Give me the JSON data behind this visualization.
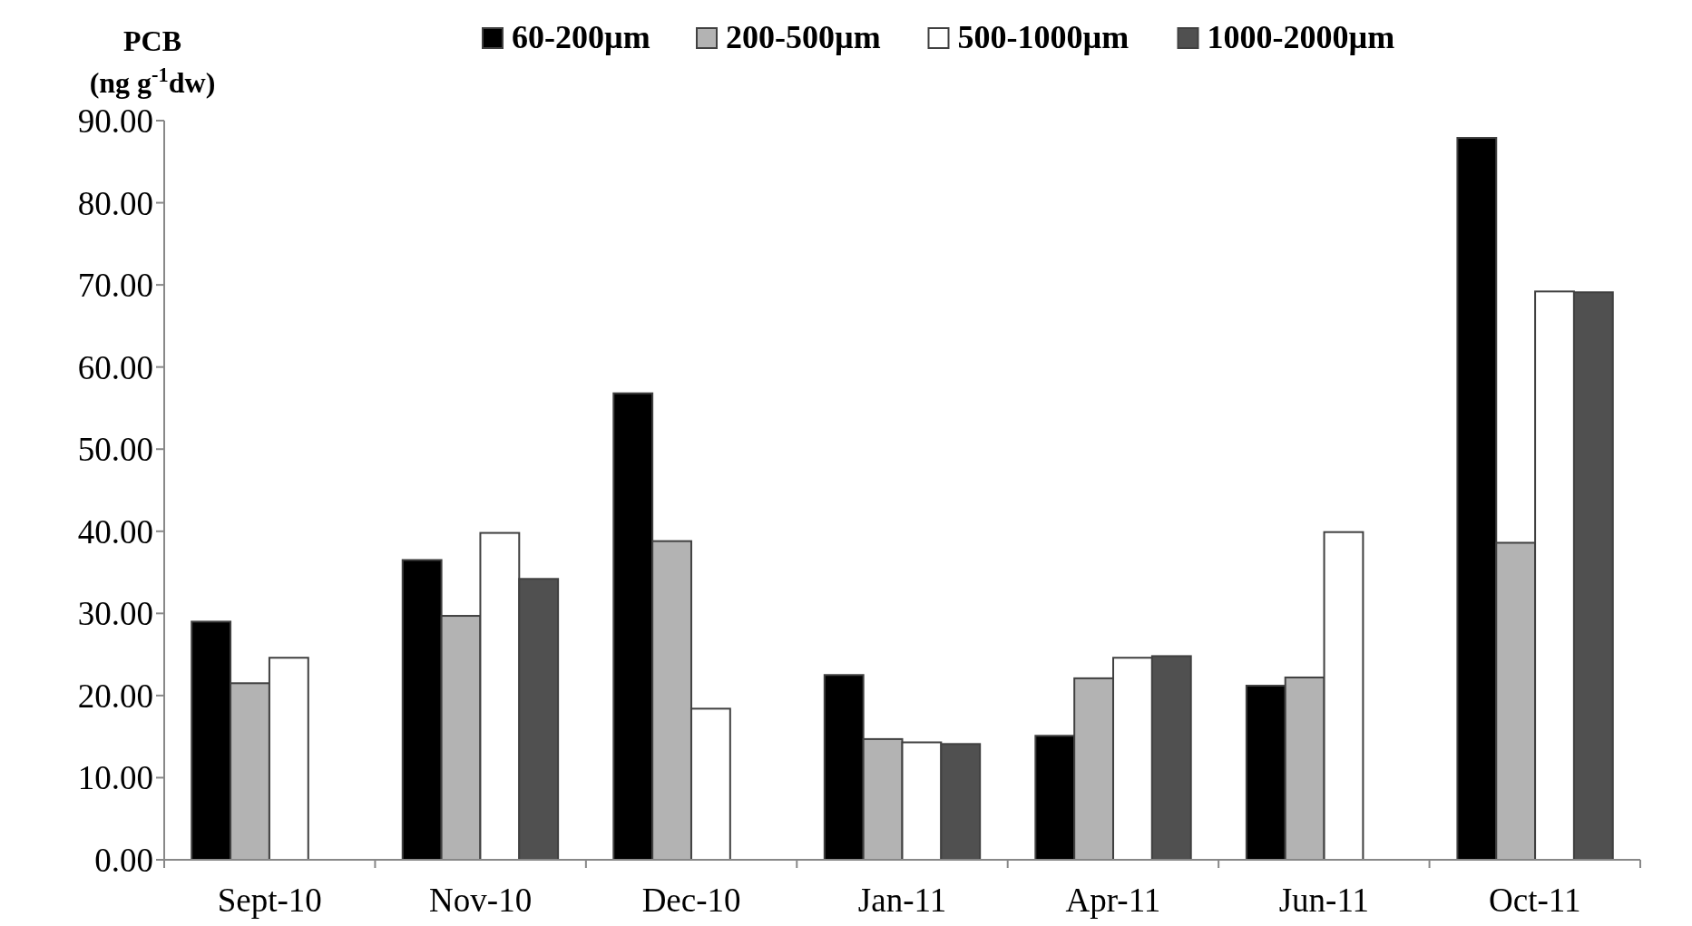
{
  "chart_data": {
    "type": "bar",
    "ylabel": "PCB (ng g$^{-1}$dw)",
    "categories": [
      "Sept-10",
      "Nov-10",
      "Dec-10",
      "Jan-11",
      "Apr-11",
      "Jun-11",
      "Oct-11"
    ],
    "series": [
      {
        "name": "60-200µm",
        "color": "#000000",
        "values": [
          29.0,
          36.5,
          56.8,
          22.5,
          15.1,
          21.2,
          87.9
        ]
      },
      {
        "name": "200-500µm",
        "color": "#b3b3b3",
        "values": [
          21.5,
          29.7,
          38.8,
          14.7,
          22.1,
          22.2,
          38.6
        ]
      },
      {
        "name": "500-1000µm",
        "color": "#ffffff",
        "values": [
          24.6,
          39.8,
          18.4,
          14.3,
          24.6,
          39.9,
          69.2
        ]
      },
      {
        "name": "1000-2000µm",
        "color": "#505050",
        "values": [
          null,
          34.2,
          null,
          14.1,
          24.8,
          null,
          69.1
        ]
      }
    ],
    "ylim": [
      0,
      90
    ],
    "yticks": [
      {
        "value": 0,
        "label": "0.00"
      },
      {
        "value": 10,
        "label": "10.00"
      },
      {
        "value": 20,
        "label": "20.00"
      },
      {
        "value": 30,
        "label": "30.00"
      },
      {
        "value": 40,
        "label": "40.00"
      },
      {
        "value": 50,
        "label": "50.00"
      },
      {
        "value": 60,
        "label": "60.00"
      },
      {
        "value": 70,
        "label": "70.00"
      },
      {
        "value": 80,
        "label": "80.00"
      },
      {
        "value": 90,
        "label": "90.00"
      }
    ],
    "grid": false,
    "legend": "top"
  }
}
